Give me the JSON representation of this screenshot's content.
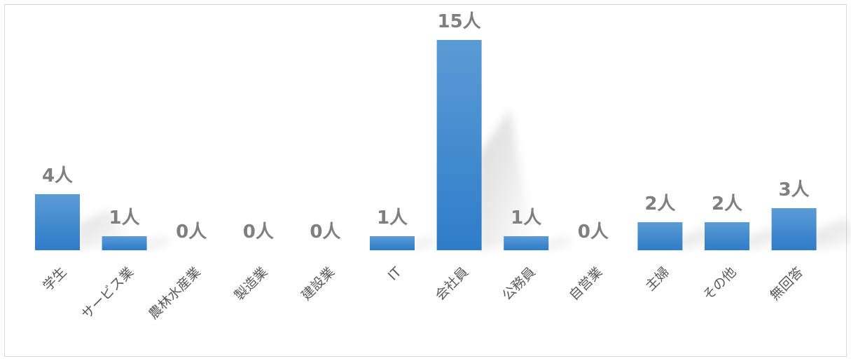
{
  "chart_data": {
    "type": "bar",
    "title": "",
    "xlabel": "",
    "ylabel": "",
    "categories": [
      "学生",
      "サービス業",
      "農林水産業",
      "製造業",
      "建設業",
      "IT",
      "会社員",
      "公務員",
      "自営業",
      "主婦",
      "その他",
      "無回答"
    ],
    "values": [
      4,
      1,
      0,
      0,
      0,
      1,
      15,
      1,
      0,
      2,
      2,
      3
    ],
    "data_labels": [
      "4人",
      "1人",
      "0人",
      "0人",
      "0人",
      "1人",
      "15人",
      "1人",
      "0人",
      "2人",
      "2人",
      "3人"
    ],
    "ylim": [
      0,
      15
    ],
    "grid": false,
    "legend": "none",
    "bar_color_top": "#5b9bd5",
    "bar_color_bottom": "#2e7cc9",
    "label_color": "#7f7f7f",
    "tick_color": "#595959",
    "border_color": "#d9d9d9"
  }
}
